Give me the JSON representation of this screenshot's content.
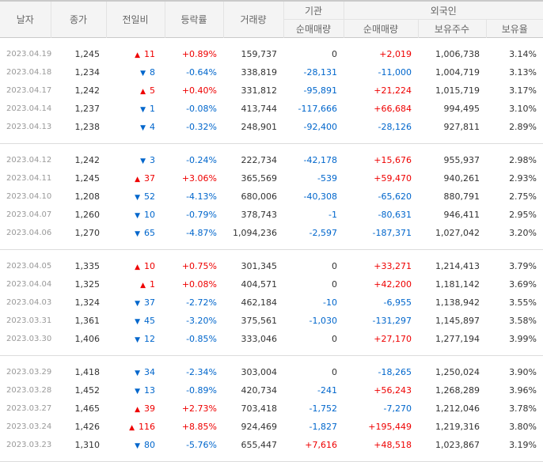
{
  "headers": {
    "date": "날자",
    "close": "종가",
    "change": "전일비",
    "rate": "등락률",
    "volume": "거래량",
    "institution": "기관",
    "foreign": "외국인",
    "inst_net": "순매매량",
    "foreign_net": "순매매량",
    "holdings": "보유주수",
    "ratio": "보유율"
  },
  "colors": {
    "up": "#e00000",
    "down": "#0066cc"
  },
  "groups": [
    [
      {
        "date": "2023.04.19",
        "close": "1,245",
        "dir": "up",
        "change": "11",
        "rate": "+0.89%",
        "volume": "159,737",
        "inst": "0",
        "foreign": "+2,019",
        "holdings": "1,006,738",
        "ratio": "3.14%"
      },
      {
        "date": "2023.04.18",
        "close": "1,234",
        "dir": "down",
        "change": "8",
        "rate": "-0.64%",
        "volume": "338,819",
        "inst": "-28,131",
        "foreign": "-11,000",
        "holdings": "1,004,719",
        "ratio": "3.13%"
      },
      {
        "date": "2023.04.17",
        "close": "1,242",
        "dir": "up",
        "change": "5",
        "rate": "+0.40%",
        "volume": "331,812",
        "inst": "-95,891",
        "foreign": "+21,224",
        "holdings": "1,015,719",
        "ratio": "3.17%"
      },
      {
        "date": "2023.04.14",
        "close": "1,237",
        "dir": "down",
        "change": "1",
        "rate": "-0.08%",
        "volume": "413,744",
        "inst": "-117,666",
        "foreign": "+66,684",
        "holdings": "994,495",
        "ratio": "3.10%"
      },
      {
        "date": "2023.04.13",
        "close": "1,238",
        "dir": "down",
        "change": "4",
        "rate": "-0.32%",
        "volume": "248,901",
        "inst": "-92,400",
        "foreign": "-28,126",
        "holdings": "927,811",
        "ratio": "2.89%"
      }
    ],
    [
      {
        "date": "2023.04.12",
        "close": "1,242",
        "dir": "down",
        "change": "3",
        "rate": "-0.24%",
        "volume": "222,734",
        "inst": "-42,178",
        "foreign": "+15,676",
        "holdings": "955,937",
        "ratio": "2.98%"
      },
      {
        "date": "2023.04.11",
        "close": "1,245",
        "dir": "up",
        "change": "37",
        "rate": "+3.06%",
        "volume": "365,569",
        "inst": "-539",
        "foreign": "+59,470",
        "holdings": "940,261",
        "ratio": "2.93%"
      },
      {
        "date": "2023.04.10",
        "close": "1,208",
        "dir": "down",
        "change": "52",
        "rate": "-4.13%",
        "volume": "680,006",
        "inst": "-40,308",
        "foreign": "-65,620",
        "holdings": "880,791",
        "ratio": "2.75%"
      },
      {
        "date": "2023.04.07",
        "close": "1,260",
        "dir": "down",
        "change": "10",
        "rate": "-0.79%",
        "volume": "378,743",
        "inst": "-1",
        "foreign": "-80,631",
        "holdings": "946,411",
        "ratio": "2.95%"
      },
      {
        "date": "2023.04.06",
        "close": "1,270",
        "dir": "down",
        "change": "65",
        "rate": "-4.87%",
        "volume": "1,094,236",
        "inst": "-2,597",
        "foreign": "-187,371",
        "holdings": "1,027,042",
        "ratio": "3.20%"
      }
    ],
    [
      {
        "date": "2023.04.05",
        "close": "1,335",
        "dir": "up",
        "change": "10",
        "rate": "+0.75%",
        "volume": "301,345",
        "inst": "0",
        "foreign": "+33,271",
        "holdings": "1,214,413",
        "ratio": "3.79%"
      },
      {
        "date": "2023.04.04",
        "close": "1,325",
        "dir": "up",
        "change": "1",
        "rate": "+0.08%",
        "volume": "404,571",
        "inst": "0",
        "foreign": "+42,200",
        "holdings": "1,181,142",
        "ratio": "3.69%"
      },
      {
        "date": "2023.04.03",
        "close": "1,324",
        "dir": "down",
        "change": "37",
        "rate": "-2.72%",
        "volume": "462,184",
        "inst": "-10",
        "foreign": "-6,955",
        "holdings": "1,138,942",
        "ratio": "3.55%"
      },
      {
        "date": "2023.03.31",
        "close": "1,361",
        "dir": "down",
        "change": "45",
        "rate": "-3.20%",
        "volume": "375,561",
        "inst": "-1,030",
        "foreign": "-131,297",
        "holdings": "1,145,897",
        "ratio": "3.58%"
      },
      {
        "date": "2023.03.30",
        "close": "1,406",
        "dir": "down",
        "change": "12",
        "rate": "-0.85%",
        "volume": "333,046",
        "inst": "0",
        "foreign": "+27,170",
        "holdings": "1,277,194",
        "ratio": "3.99%"
      }
    ],
    [
      {
        "date": "2023.03.29",
        "close": "1,418",
        "dir": "down",
        "change": "34",
        "rate": "-2.34%",
        "volume": "303,004",
        "inst": "0",
        "foreign": "-18,265",
        "holdings": "1,250,024",
        "ratio": "3.90%"
      },
      {
        "date": "2023.03.28",
        "close": "1,452",
        "dir": "down",
        "change": "13",
        "rate": "-0.89%",
        "volume": "420,734",
        "inst": "-241",
        "foreign": "+56,243",
        "holdings": "1,268,289",
        "ratio": "3.96%"
      },
      {
        "date": "2023.03.27",
        "close": "1,465",
        "dir": "up",
        "change": "39",
        "rate": "+2.73%",
        "volume": "703,418",
        "inst": "-1,752",
        "foreign": "-7,270",
        "holdings": "1,212,046",
        "ratio": "3.78%"
      },
      {
        "date": "2023.03.24",
        "close": "1,426",
        "dir": "up",
        "change": "116",
        "rate": "+8.85%",
        "volume": "924,469",
        "inst": "-1,827",
        "foreign": "+195,449",
        "holdings": "1,219,316",
        "ratio": "3.80%"
      },
      {
        "date": "2023.03.23",
        "close": "1,310",
        "dir": "down",
        "change": "80",
        "rate": "-5.76%",
        "volume": "655,447",
        "inst": "+7,616",
        "foreign": "+48,518",
        "holdings": "1,023,867",
        "ratio": "3.19%"
      }
    ]
  ]
}
